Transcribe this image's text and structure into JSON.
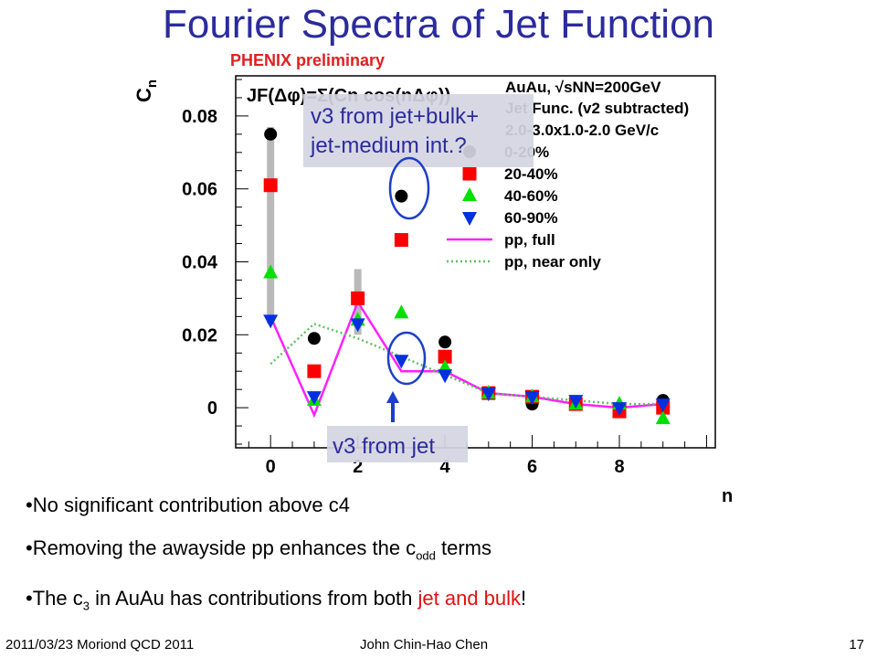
{
  "slide": {
    "title": "Fourier Spectra of Jet Function",
    "bullets": [
      {
        "text": "No significant contribution above c4"
      },
      {
        "pre": "Removing the awayside pp enhances the c",
        "sub": "odd",
        "post": " terms"
      },
      {
        "pre": "The c",
        "sub": "3",
        "mid": " in AuAu has contributions from both ",
        "highlight": "jet and bulk",
        "post": "!"
      }
    ],
    "footer": {
      "left": "2011/03/23 Moriond QCD 2011",
      "center": "John Chin-Hao Chen",
      "right": "17"
    }
  },
  "chart_data": {
    "type": "scatter",
    "preliminary_label": "PHENIX preliminary",
    "formula": "JF(Δφ)=Σ(Cn cos(nΔφ))",
    "ylabel": "Cn",
    "xlabel": "n",
    "xlim": [
      -0.8,
      10.2
    ],
    "ylim": [
      -0.011,
      0.091
    ],
    "xticks": [
      0,
      2,
      4,
      6,
      8
    ],
    "yticks": [
      0,
      0.02,
      0.04,
      0.06,
      0.08
    ],
    "ytick_labels": [
      "0",
      "0.02",
      "0.04",
      "0.06",
      "0.08"
    ],
    "info_lines": [
      "AuAu, √sNN=200GeV",
      "Jet Func. (v2 subtracted)",
      "2.0-3.0x1.0-2.0 GeV/c"
    ],
    "series": [
      {
        "name": "0-20%",
        "marker": "circle",
        "color": "#000000",
        "x": [
          0,
          1,
          2,
          3,
          4,
          5,
          6,
          7,
          8,
          9
        ],
        "y": [
          0.075,
          0.019,
          0.03,
          0.058,
          0.018,
          0.004,
          0.001,
          0.001,
          0.0,
          0.002
        ]
      },
      {
        "name": "20-40%",
        "marker": "square",
        "color": "#ff0000",
        "x": [
          0,
          1,
          2,
          3,
          4,
          5,
          6,
          7,
          8,
          9
        ],
        "y": [
          0.061,
          0.01,
          0.03,
          0.046,
          0.014,
          0.004,
          0.003,
          0.001,
          -0.001,
          0.0
        ]
      },
      {
        "name": "40-60%",
        "marker": "triangle-up",
        "color": "#00e000",
        "x": [
          0,
          1,
          2,
          3,
          4,
          5,
          6,
          7,
          8,
          9
        ],
        "y": [
          0.037,
          0.002,
          0.024,
          0.026,
          0.011,
          0.004,
          0.003,
          0.001,
          0.001,
          -0.003
        ]
      },
      {
        "name": "60-90%",
        "marker": "triangle-down",
        "color": "#0030e0",
        "x": [
          0,
          1,
          2,
          3,
          4,
          5,
          6,
          7,
          8,
          9
        ],
        "y": [
          0.024,
          0.003,
          0.023,
          0.013,
          0.009,
          0.004,
          0.003,
          0.002,
          0.0,
          0.001
        ]
      },
      {
        "name": "pp, full",
        "marker": "line",
        "color": "#ff20ff",
        "x": [
          0,
          1,
          2,
          3,
          4,
          5,
          6,
          7,
          8,
          9
        ],
        "y": [
          0.025,
          -0.002,
          0.029,
          0.01,
          0.01,
          0.004,
          0.003,
          0.001,
          0.0,
          0.001
        ]
      },
      {
        "name": "pp, near only",
        "marker": "dotted",
        "color": "#60c060",
        "x": [
          0,
          1,
          2,
          3,
          4,
          5,
          6,
          7,
          8,
          9
        ],
        "y": [
          0.012,
          0.023,
          0.019,
          0.014,
          0.009,
          0.004,
          0.003,
          0.002,
          0.001,
          0.001
        ]
      }
    ],
    "sys_error_bars": {
      "x": [
        0,
        2
      ],
      "y_low": [
        0.023,
        0.02
      ],
      "y_high": [
        0.077,
        0.038
      ]
    },
    "annotations": [
      {
        "text_lines": [
          "v3 from jet+bulk+",
          "jet-medium int.?"
        ]
      },
      {
        "text_lines": [
          "v3 from jet"
        ]
      }
    ]
  }
}
